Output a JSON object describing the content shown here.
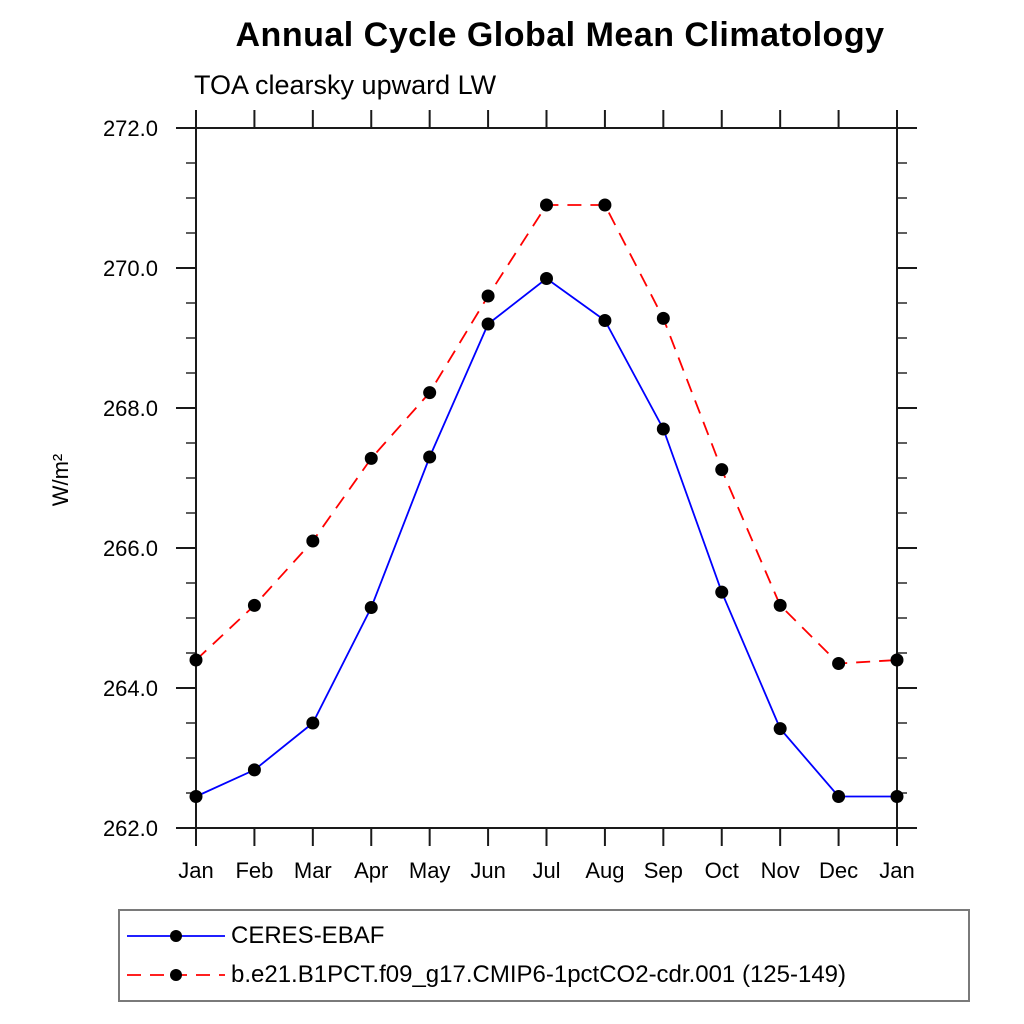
{
  "header": {
    "title": "Annual Cycle Global Mean Climatology",
    "subtitle": "TOA clearsky upward LW"
  },
  "chart_data": {
    "type": "line",
    "x_categories": [
      "Jan",
      "Feb",
      "Mar",
      "Apr",
      "May",
      "Jun",
      "Jul",
      "Aug",
      "Sep",
      "Oct",
      "Nov",
      "Dec",
      "Jan"
    ],
    "ylabel": "W/m²",
    "ylim": [
      262.0,
      272.0
    ],
    "ytick_interval": 2.0,
    "ytick_minor_interval": 0.5,
    "ytick_labels": [
      "262.0",
      "264.0",
      "266.0",
      "268.0",
      "270.0",
      "272.0"
    ],
    "grid": "off",
    "legend_position": "bottom",
    "axis_color": "#1a1a1a",
    "marker": "filled-circle",
    "marker_color": "#000000",
    "series": [
      {
        "name": "CERES-EBAF",
        "color": "#0000ff",
        "line_style": "solid",
        "values": [
          262.45,
          262.83,
          263.5,
          265.15,
          267.3,
          269.2,
          269.85,
          269.25,
          267.7,
          265.37,
          263.42,
          262.45,
          262.45
        ]
      },
      {
        "name": "b.e21.B1PCT.f09_g17.CMIP6-1pctCO2-cdr.001 (125-149)",
        "color": "#ff0000",
        "line_style": "dashed",
        "values": [
          264.4,
          265.18,
          266.1,
          267.28,
          268.22,
          269.6,
          270.9,
          270.9,
          269.28,
          267.12,
          265.18,
          264.35,
          264.4
        ]
      }
    ]
  }
}
